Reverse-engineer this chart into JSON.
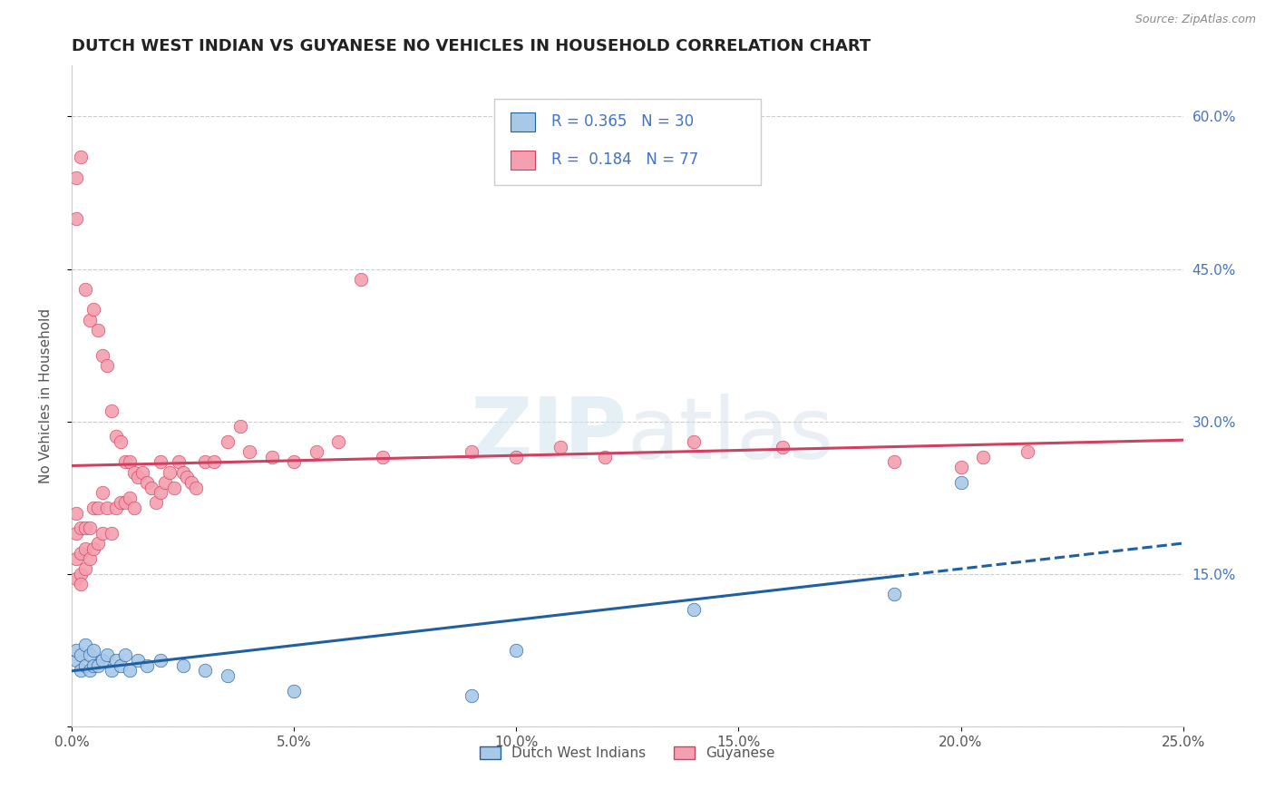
{
  "title": "DUTCH WEST INDIAN VS GUYANESE NO VEHICLES IN HOUSEHOLD CORRELATION CHART",
  "source": "Source: ZipAtlas.com",
  "ylabel": "No Vehicles in Household",
  "legend_label_1": "Dutch West Indians",
  "legend_label_2": "Guyanese",
  "color_blue": "#a8c8e8",
  "color_pink": "#f4a0b0",
  "color_blue_line": "#2060a0",
  "color_pink_line": "#d04060",
  "dutch_x": [
    0.001,
    0.001,
    0.002,
    0.002,
    0.003,
    0.003,
    0.004,
    0.004,
    0.005,
    0.005,
    0.006,
    0.007,
    0.008,
    0.009,
    0.01,
    0.011,
    0.012,
    0.013,
    0.015,
    0.017,
    0.02,
    0.025,
    0.03,
    0.035,
    0.05,
    0.09,
    0.1,
    0.14,
    0.185,
    0.2
  ],
  "dutch_y": [
    0.065,
    0.075,
    0.055,
    0.07,
    0.06,
    0.08,
    0.055,
    0.07,
    0.06,
    0.075,
    0.06,
    0.065,
    0.07,
    0.055,
    0.065,
    0.06,
    0.07,
    0.055,
    0.065,
    0.06,
    0.065,
    0.06,
    0.055,
    0.05,
    0.035,
    0.03,
    0.075,
    0.115,
    0.13,
    0.24
  ],
  "guyanese_x": [
    0.001,
    0.001,
    0.001,
    0.001,
    0.001,
    0.001,
    0.002,
    0.002,
    0.002,
    0.002,
    0.002,
    0.003,
    0.003,
    0.003,
    0.003,
    0.004,
    0.004,
    0.004,
    0.005,
    0.005,
    0.005,
    0.006,
    0.006,
    0.006,
    0.007,
    0.007,
    0.007,
    0.008,
    0.008,
    0.009,
    0.009,
    0.01,
    0.01,
    0.011,
    0.011,
    0.012,
    0.012,
    0.013,
    0.013,
    0.014,
    0.014,
    0.015,
    0.016,
    0.017,
    0.018,
    0.019,
    0.02,
    0.02,
    0.021,
    0.022,
    0.023,
    0.024,
    0.025,
    0.026,
    0.027,
    0.028,
    0.03,
    0.032,
    0.035,
    0.038,
    0.04,
    0.045,
    0.05,
    0.055,
    0.06,
    0.065,
    0.07,
    0.09,
    0.1,
    0.11,
    0.12,
    0.14,
    0.16,
    0.185,
    0.2,
    0.205,
    0.215
  ],
  "guyanese_y": [
    0.54,
    0.5,
    0.21,
    0.19,
    0.165,
    0.145,
    0.56,
    0.195,
    0.17,
    0.15,
    0.14,
    0.43,
    0.195,
    0.175,
    0.155,
    0.4,
    0.195,
    0.165,
    0.41,
    0.215,
    0.175,
    0.39,
    0.215,
    0.18,
    0.365,
    0.23,
    0.19,
    0.355,
    0.215,
    0.31,
    0.19,
    0.285,
    0.215,
    0.28,
    0.22,
    0.26,
    0.22,
    0.26,
    0.225,
    0.25,
    0.215,
    0.245,
    0.25,
    0.24,
    0.235,
    0.22,
    0.26,
    0.23,
    0.24,
    0.25,
    0.235,
    0.26,
    0.25,
    0.245,
    0.24,
    0.235,
    0.26,
    0.26,
    0.28,
    0.295,
    0.27,
    0.265,
    0.26,
    0.27,
    0.28,
    0.44,
    0.265,
    0.27,
    0.265,
    0.275,
    0.265,
    0.28,
    0.275,
    0.26,
    0.255,
    0.265,
    0.27
  ],
  "xlim": [
    0.0,
    0.25
  ],
  "ylim": [
    0.0,
    0.65
  ],
  "xticks": [
    0.0,
    0.05,
    0.1,
    0.15,
    0.2,
    0.25
  ],
  "xticklabels": [
    "0.0%",
    "5.0%",
    "10.0%",
    "15.0%",
    "20.0%",
    "25.0%"
  ],
  "yticks": [
    0.0,
    0.15,
    0.3,
    0.45,
    0.6
  ],
  "yticklabels_right": [
    "",
    "15.0%",
    "30.0%",
    "45.0%",
    "60.0%"
  ],
  "dutch_line_solid_end": 0.185,
  "dutch_line_dash_start": 0.185
}
